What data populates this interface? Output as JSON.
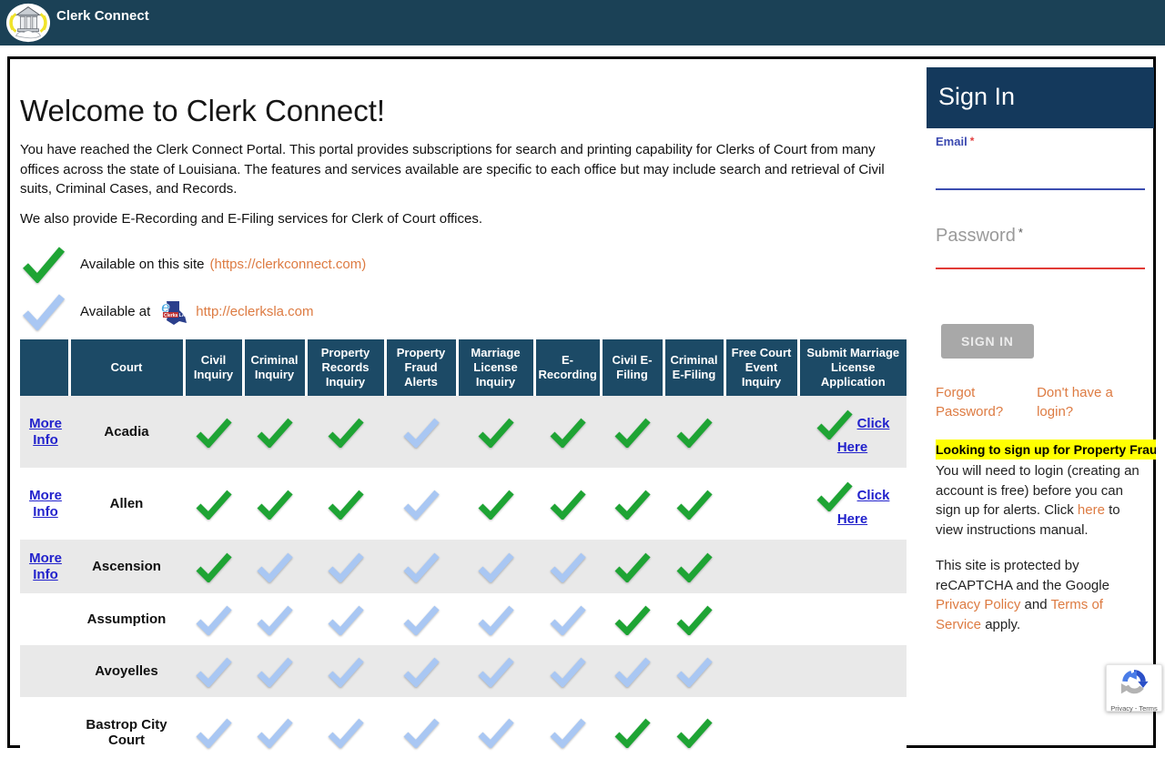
{
  "topbar": {
    "app_name": "Clerk Connect"
  },
  "welcome": {
    "title": "Welcome to Clerk Connect!",
    "para1": "You have reached the Clerk Connect Portal. This portal provides subscriptions for search and printing capability for Clerks of Court from many offices across the state of Louisiana. The features and services available are specific to each office but may include search and retrieval of Civil suits, Criminal Cases, and Records.",
    "para2": "We also provide E-Recording and E-Filing services for Clerk of Court offices."
  },
  "legend": {
    "green_text_before": "Available on this site",
    "green_link": "(https://clerkconnect.com)",
    "blue_text_before": "Available at",
    "blue_link": "http://eclerksla.com",
    "eclerksla_logo_e": "e",
    "eclerksla_logo_label": "Clerks LA"
  },
  "table": {
    "more_info_label": "More Info",
    "click_here_label": "Click Here",
    "columns": [
      "",
      "Court",
      "Civil Inquiry",
      "Criminal Inquiry",
      "Property Records Inquiry",
      "Property Fraud Alerts",
      "Marriage License Inquiry",
      "E-Recording",
      "Civil E-Filing",
      "Criminal E-Filing",
      "Free Court Event Inquiry",
      "Submit Marriage License Application"
    ],
    "rows": [
      {
        "court": "Acadia",
        "more_info": true,
        "click_here": true,
        "checks": [
          "green",
          "green",
          "green",
          "blue",
          "green",
          "green",
          "green",
          "green",
          "",
          "green"
        ]
      },
      {
        "court": "Allen",
        "more_info": true,
        "click_here": true,
        "checks": [
          "green",
          "green",
          "green",
          "blue",
          "green",
          "green",
          "green",
          "green",
          "",
          "green"
        ]
      },
      {
        "court": "Ascension",
        "more_info": true,
        "click_here": false,
        "checks": [
          "green",
          "blue",
          "blue",
          "blue",
          "blue",
          "blue",
          "green",
          "green",
          "",
          ""
        ]
      },
      {
        "court": "Assumption",
        "more_info": false,
        "click_here": false,
        "checks": [
          "blue",
          "blue",
          "blue",
          "blue",
          "blue",
          "blue",
          "green",
          "green",
          "",
          ""
        ]
      },
      {
        "court": "Avoyelles",
        "more_info": false,
        "click_here": false,
        "checks": [
          "blue",
          "blue",
          "blue",
          "blue",
          "blue",
          "blue",
          "blue",
          "blue",
          "",
          ""
        ]
      },
      {
        "court": "Bastrop City Court",
        "more_info": false,
        "click_here": false,
        "checks": [
          "blue",
          "blue",
          "blue",
          "blue",
          "blue",
          "blue",
          "green",
          "green",
          "",
          ""
        ]
      }
    ]
  },
  "signin": {
    "title": "Sign In",
    "email_label": "Email",
    "password_label": "Password",
    "required_marker": "*",
    "button_label": "SIGN IN",
    "forgot_link": "Forgot Password?",
    "signup_link": "Don't have a login?",
    "banner": "Looking to sign up for Property Fraud",
    "alerts_before": "You will need to login (creating an account is free) before you can sign up for alerts. Click ",
    "alerts_link": "here",
    "alerts_after": " to view instructions manual.",
    "recaptcha_before": "This site is protected by reCAPTCHA and the Google ",
    "recaptcha_link1": "Privacy Policy",
    "recaptcha_mid": " and ",
    "recaptcha_link2": "Terms of Service",
    "recaptcha_after": " apply."
  },
  "recaptcha_badge": {
    "label": "Privacy - Terms"
  },
  "colors": {
    "topbar_bg": "#1b4156",
    "table_header_bg": "#1c4a66",
    "signin_header_bg": "#14395c",
    "check_green": "#1ea434",
    "check_blue": "#a9c7f3",
    "link_orange": "#dd7b42",
    "link_blue": "#2222cc",
    "row_stripe": "#e9e9e9",
    "banner_yellow": "#ffff00",
    "email_accent": "#3b4db0",
    "password_accent": "#e13b36",
    "button_gray": "#a8a8a8"
  }
}
